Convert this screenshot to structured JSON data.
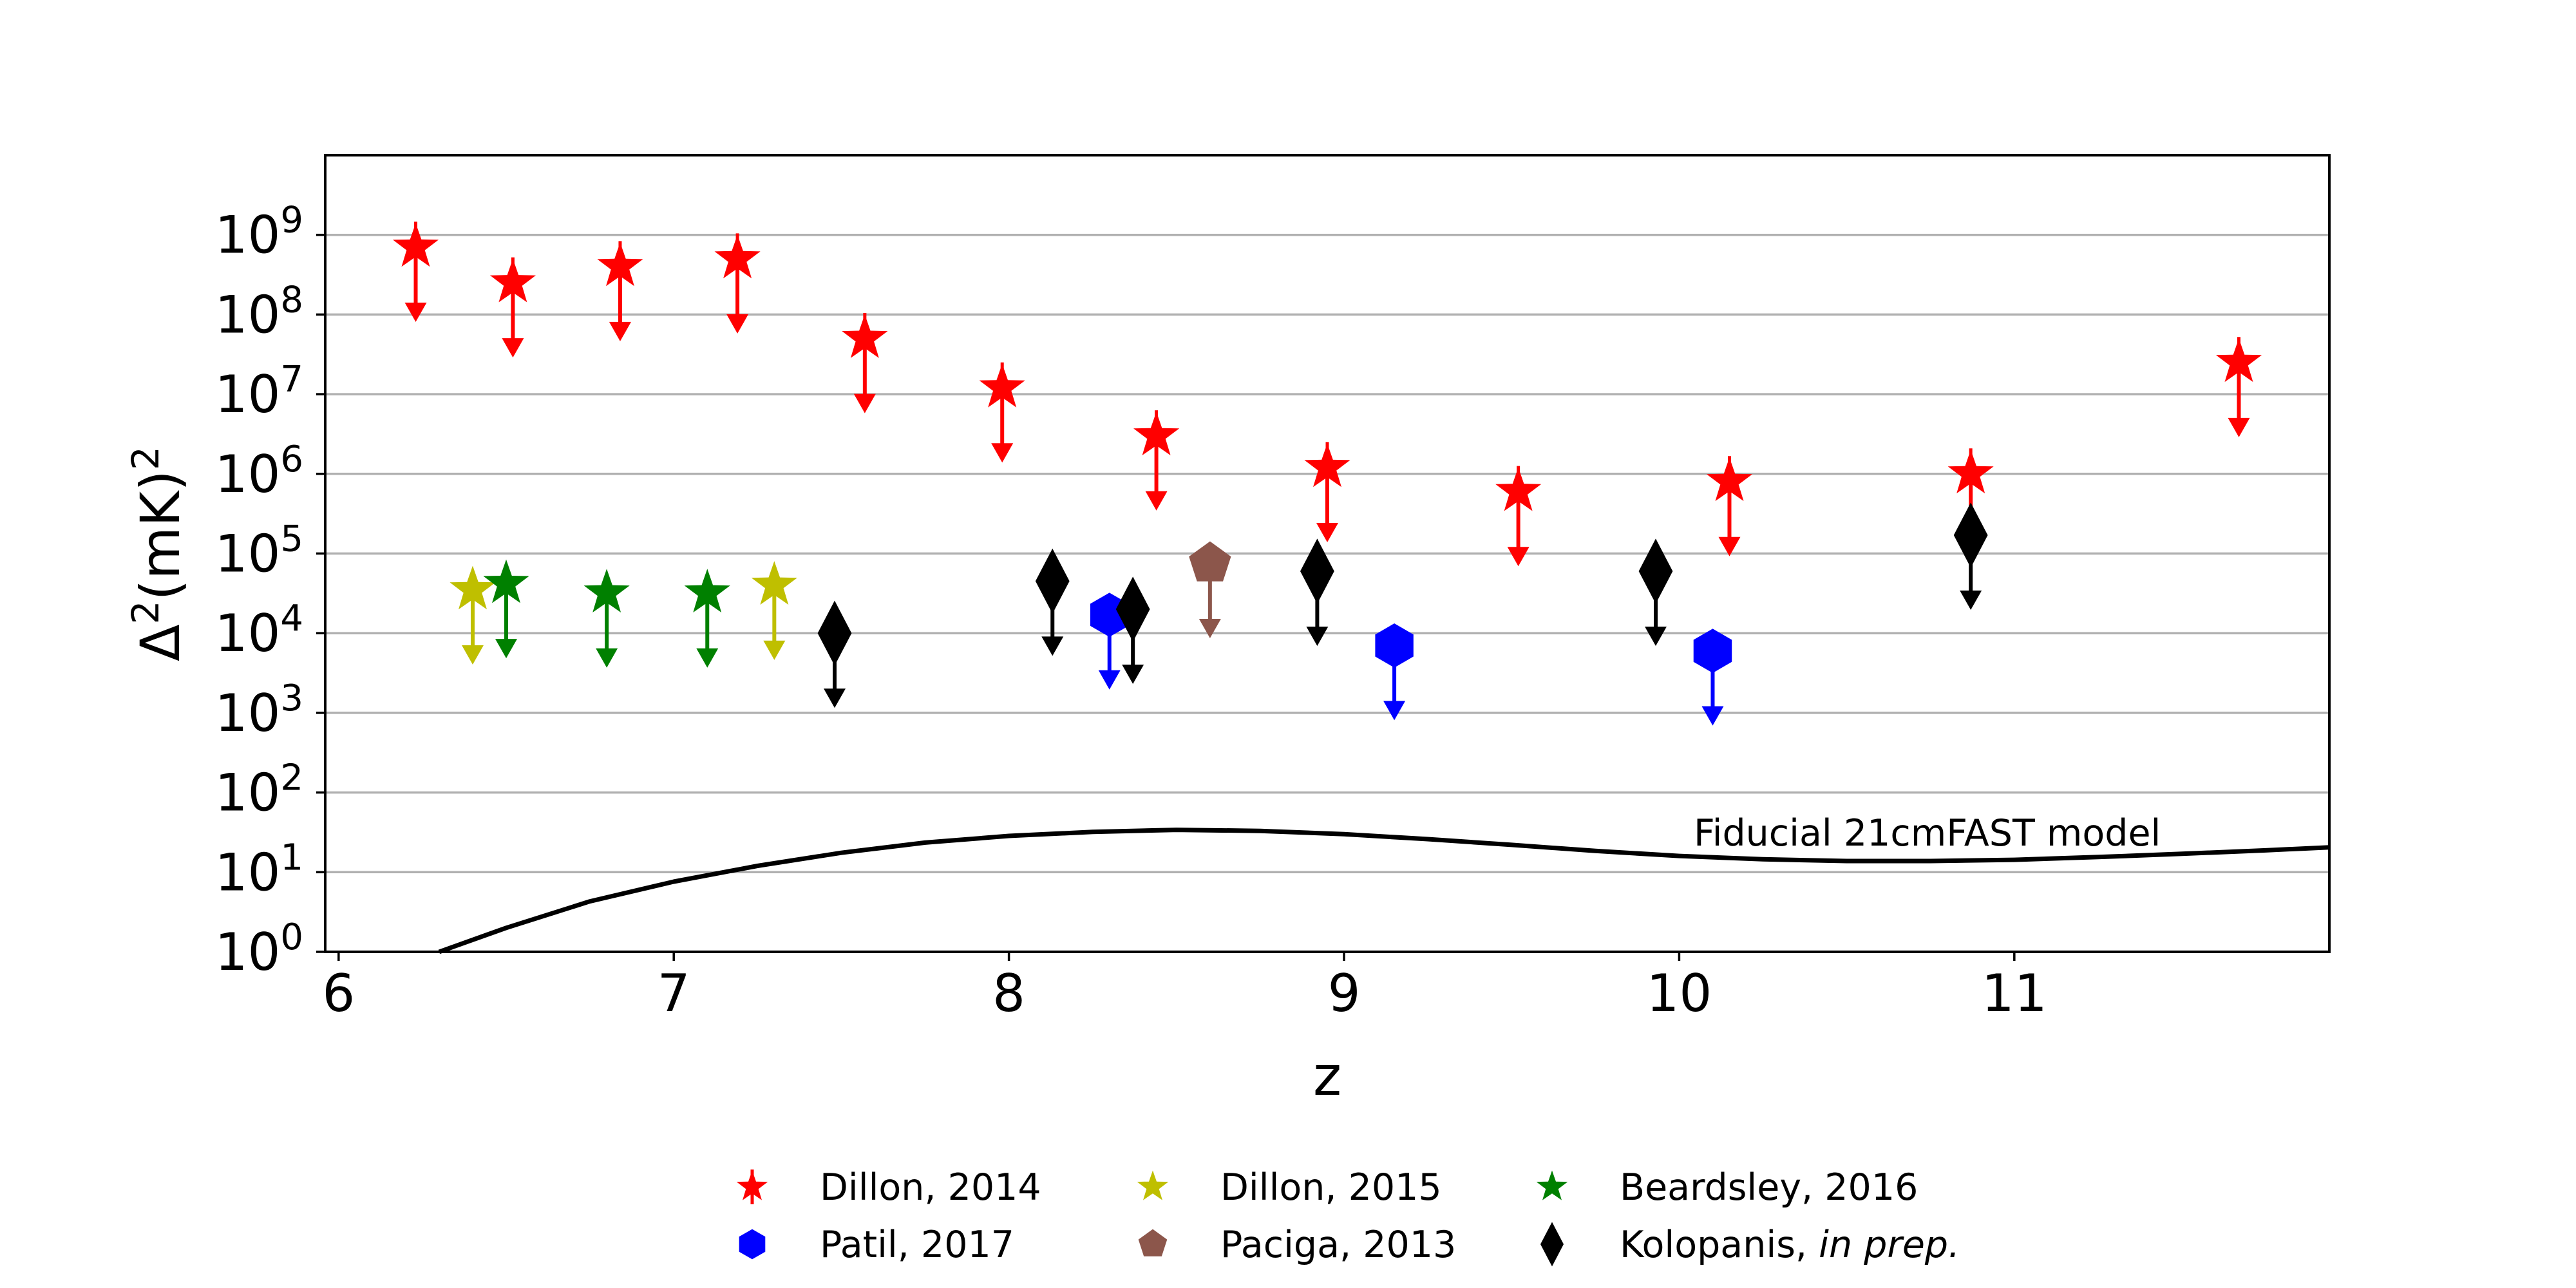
{
  "chart_data": {
    "type": "scatter",
    "title": "",
    "xlabel": "z",
    "ylabel": "Δ²(mK)²",
    "xlim": [
      5.96,
      11.94
    ],
    "ylim": [
      1,
      10000000000.0
    ],
    "y_scale": "log",
    "x_ticks": [
      {
        "value": 6,
        "label": "6"
      },
      {
        "value": 7,
        "label": "7"
      },
      {
        "value": 8,
        "label": "8"
      },
      {
        "value": 9,
        "label": "9"
      },
      {
        "value": 10,
        "label": "10"
      },
      {
        "value": 11,
        "label": "11"
      }
    ],
    "y_ticks": [
      {
        "exp": 0,
        "base": "10",
        "sup": "0"
      },
      {
        "exp": 1,
        "base": "10",
        "sup": "1"
      },
      {
        "exp": 2,
        "base": "10",
        "sup": "2"
      },
      {
        "exp": 3,
        "base": "10",
        "sup": "3"
      },
      {
        "exp": 4,
        "base": "10",
        "sup": "4"
      },
      {
        "exp": 5,
        "base": "10",
        "sup": "5"
      },
      {
        "exp": 6,
        "base": "10",
        "sup": "6"
      },
      {
        "exp": 7,
        "base": "10",
        "sup": "7"
      },
      {
        "exp": 8,
        "base": "10",
        "sup": "8"
      },
      {
        "exp": 9,
        "base": "10",
        "sup": "9"
      }
    ],
    "grid": {
      "horizontal": true,
      "vertical": false
    },
    "legend_placement": "bottom-center",
    "series": [
      {
        "name": "Dillon, 2014",
        "marker": "star-errorbar",
        "color": "#ff0000",
        "points": [
          {
            "x": 6.23,
            "y": 700000000
          },
          {
            "x": 6.52,
            "y": 250000000
          },
          {
            "x": 6.84,
            "y": 400000000
          },
          {
            "x": 7.19,
            "y": 500000000
          },
          {
            "x": 7.57,
            "y": 50000000
          },
          {
            "x": 7.98,
            "y": 12000000
          },
          {
            "x": 8.44,
            "y": 3000000
          },
          {
            "x": 8.95,
            "y": 1200000
          },
          {
            "x": 9.52,
            "y": 600000
          },
          {
            "x": 10.15,
            "y": 800000
          },
          {
            "x": 10.87,
            "y": 1000000
          },
          {
            "x": 11.67,
            "y": 25000000
          }
        ]
      },
      {
        "name": "Dillon, 2015",
        "marker": "star",
        "color": "#bfbf00",
        "points": [
          {
            "x": 6.4,
            "y": 35000
          },
          {
            "x": 7.3,
            "y": 40000
          }
        ]
      },
      {
        "name": "Beardsley, 2016",
        "marker": "star",
        "color": "#008000",
        "points": [
          {
            "x": 6.5,
            "y": 42000
          },
          {
            "x": 6.8,
            "y": 32000
          },
          {
            "x": 7.1,
            "y": 32000
          }
        ]
      },
      {
        "name": "Patil, 2017",
        "marker": "hexagon",
        "color": "#0000ff",
        "points": [
          {
            "x": 8.3,
            "y": 17000
          },
          {
            "x": 9.15,
            "y": 7000
          },
          {
            "x": 10.1,
            "y": 6000
          }
        ]
      },
      {
        "name": "Paciga, 2013",
        "marker": "pentagon",
        "color": "#8c564b",
        "points": [
          {
            "x": 8.6,
            "y": 75000
          }
        ]
      },
      {
        "name": "Kolopanis, in prep.",
        "name_main": "Kolopanis, ",
        "name_italic": "in prep.",
        "marker": "thin-diamond",
        "color": "#000000",
        "points": [
          {
            "x": 7.48,
            "y": 10000
          },
          {
            "x": 8.13,
            "y": 45000
          },
          {
            "x": 8.37,
            "y": 20000
          },
          {
            "x": 8.92,
            "y": 60000
          },
          {
            "x": 9.93,
            "y": 60000
          },
          {
            "x": 10.87,
            "y": 170000
          }
        ]
      }
    ],
    "model_curve": {
      "label": "Fiducial 21cmFAST model",
      "color": "#000000",
      "x": [
        6.3,
        6.5,
        6.75,
        7.0,
        7.25,
        7.5,
        7.75,
        8.0,
        8.25,
        8.5,
        8.75,
        9.0,
        9.25,
        9.5,
        9.75,
        10.0,
        10.25,
        10.5,
        10.75,
        11.0,
        11.25,
        11.5,
        11.75,
        11.94
      ],
      "y": [
        1.0,
        2.0,
        4.3,
        7.6,
        12.0,
        17.5,
        23.5,
        28.5,
        32.0,
        34.0,
        33.0,
        30.0,
        26.0,
        22.0,
        18.5,
        16.0,
        14.5,
        13.8,
        13.8,
        14.3,
        15.5,
        17.0,
        18.8,
        20.5
      ]
    },
    "legend_entries": [
      {
        "label": "Dillon, 2014",
        "series": 0
      },
      {
        "label": "Dillon, 2015",
        "series": 1
      },
      {
        "label": "Beardsley, 2016",
        "series": 2
      },
      {
        "label": "Patil, 2017",
        "series": 3
      },
      {
        "label": "Paciga, 2013",
        "series": 4
      },
      {
        "label": "Kolopanis, in prep.",
        "series": 5
      }
    ]
  }
}
